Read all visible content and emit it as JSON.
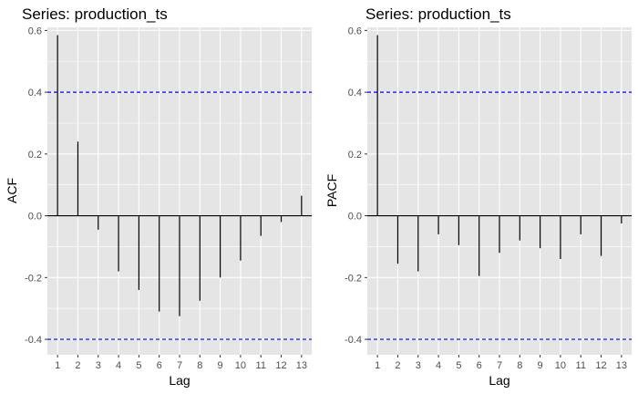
{
  "chart_data": [
    {
      "type": "bar",
      "title": "Series: production_ts",
      "xlabel": "Lag",
      "ylabel": "ACF",
      "x": [
        1,
        2,
        3,
        4,
        5,
        6,
        7,
        8,
        9,
        10,
        11,
        12,
        13
      ],
      "values": [
        0.585,
        0.24,
        -0.045,
        -0.18,
        -0.24,
        -0.31,
        -0.325,
        -0.275,
        -0.2,
        -0.145,
        -0.065,
        -0.02,
        0.065
      ],
      "ylim": [
        -0.45,
        0.61
      ],
      "xlim": [
        0.5,
        13.5
      ],
      "yticks": [
        -0.4,
        -0.2,
        0.0,
        0.2,
        0.4,
        0.6
      ],
      "ytick_labels": [
        "-0.4",
        "-0.2",
        "0.0",
        "0.2",
        "0.4",
        "0.6"
      ],
      "xtick_labels": [
        "1",
        "2",
        "3",
        "4",
        "5",
        "6",
        "7",
        "8",
        "9",
        "10",
        "11",
        "12",
        "13"
      ],
      "confidence_bounds": [
        0.4,
        -0.4
      ],
      "grid": true,
      "colors": {
        "panel": "#e5e5e5",
        "grid": "#ffffff",
        "bars": "#000000",
        "bounds": "#0000ff"
      }
    },
    {
      "type": "bar",
      "title": "Series: production_ts",
      "xlabel": "Lag",
      "ylabel": "PACF",
      "x": [
        1,
        2,
        3,
        4,
        5,
        6,
        7,
        8,
        9,
        10,
        11,
        12,
        13
      ],
      "values": [
        0.585,
        -0.155,
        -0.18,
        -0.06,
        -0.095,
        -0.195,
        -0.12,
        -0.08,
        -0.105,
        -0.14,
        -0.06,
        -0.13,
        -0.025
      ],
      "ylim": [
        -0.45,
        0.61
      ],
      "xlim": [
        0.5,
        13.5
      ],
      "yticks": [
        -0.4,
        -0.2,
        0.0,
        0.2,
        0.4,
        0.6
      ],
      "ytick_labels": [
        "-0.4",
        "-0.2",
        "0.0",
        "0.2",
        "0.4",
        "0.6"
      ],
      "xtick_labels": [
        "1",
        "2",
        "3",
        "4",
        "5",
        "6",
        "7",
        "8",
        "9",
        "10",
        "11",
        "12",
        "13"
      ],
      "confidence_bounds": [
        0.4,
        -0.4
      ],
      "grid": true,
      "colors": {
        "panel": "#e5e5e5",
        "grid": "#ffffff",
        "bars": "#000000",
        "bounds": "#0000ff"
      }
    }
  ]
}
